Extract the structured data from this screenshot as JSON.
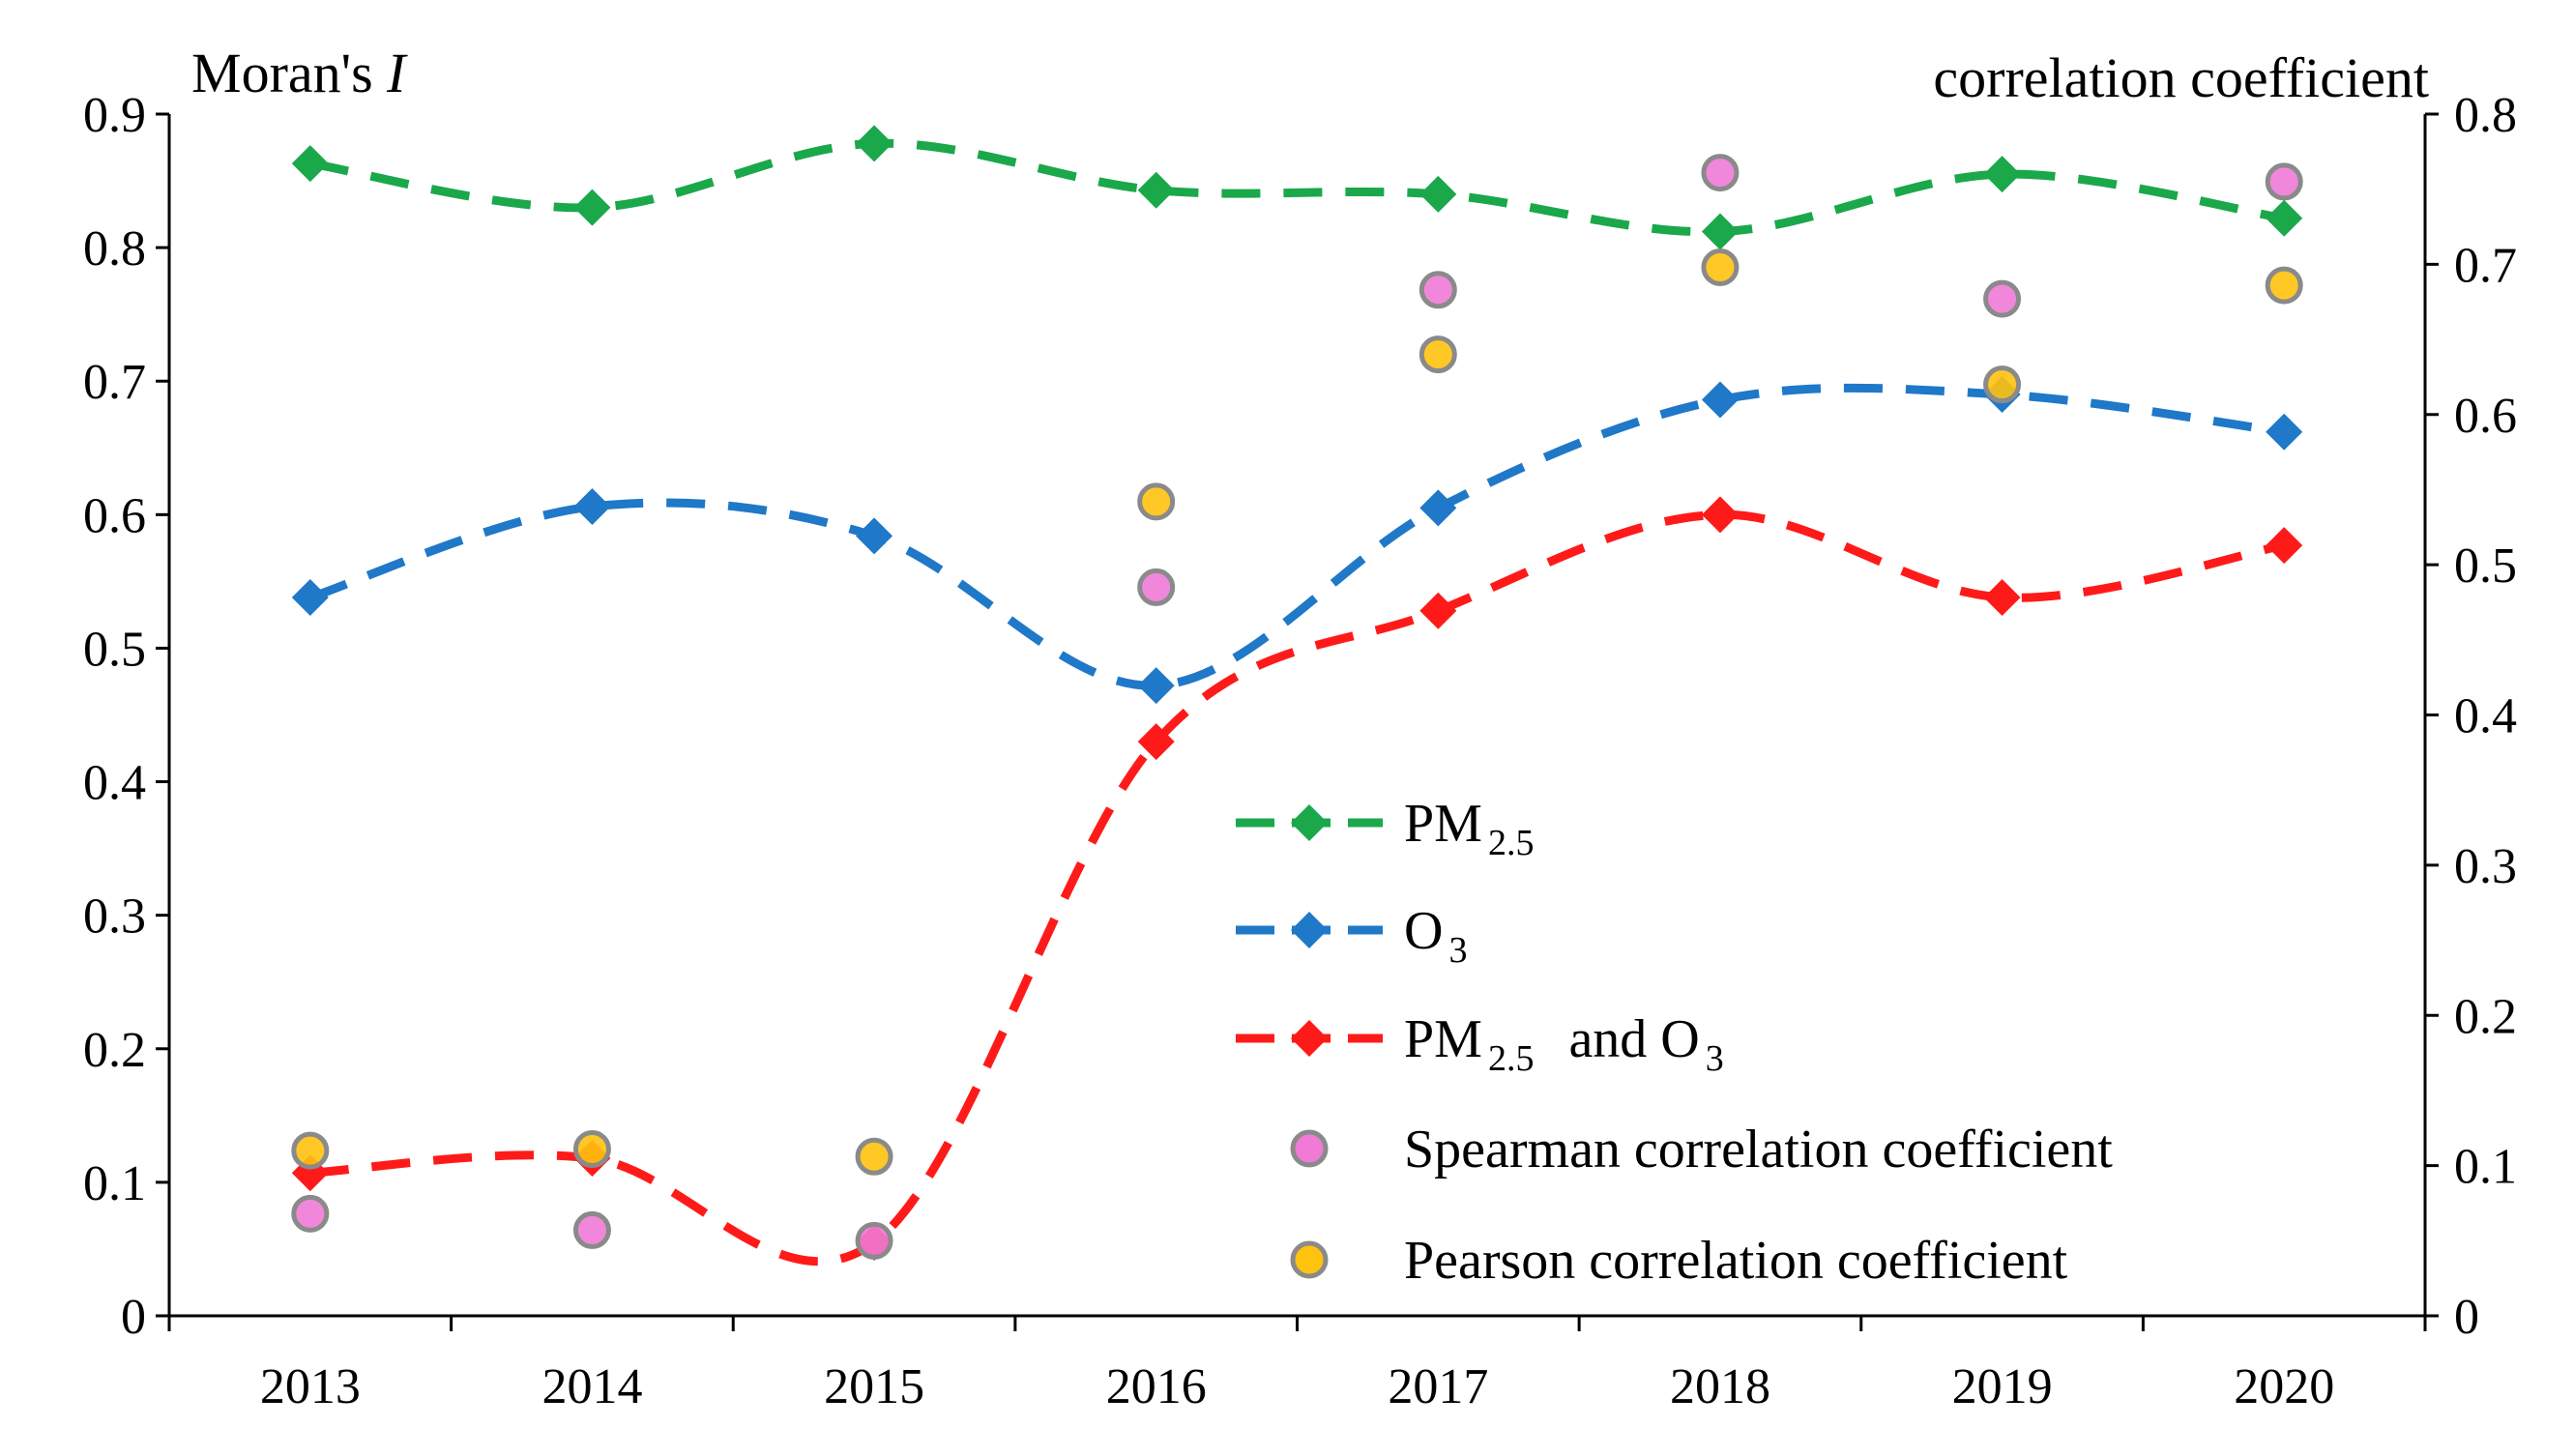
{
  "chart_data": {
    "type": "line",
    "x": [
      2013,
      2014,
      2015,
      2016,
      2017,
      2018,
      2019,
      2020
    ],
    "categories": [
      "2013",
      "2014",
      "2015",
      "2016",
      "2017",
      "2018",
      "2019",
      "2020"
    ],
    "left_axis": {
      "title_prefix": "Moran's ",
      "title_italic": "I",
      "ylim": [
        0,
        0.9
      ],
      "ticks": [
        "0",
        "0.1",
        "0.2",
        "0.3",
        "0.4",
        "0.5",
        "0.6",
        "0.7",
        "0.8",
        "0.9"
      ]
    },
    "right_axis": {
      "title": "correlation coefficient",
      "ylim": [
        0,
        0.8
      ],
      "ticks": [
        "0",
        "0.1",
        "0.2",
        "0.3",
        "0.4",
        "0.5",
        "0.6",
        "0.7",
        "0.8"
      ]
    },
    "series": [
      {
        "name": "PM2.5",
        "axis": "left",
        "style": "dashed-line-diamond",
        "color": "#1aa84a",
        "values": [
          0.863,
          0.83,
          0.878,
          0.843,
          0.84,
          0.812,
          0.855,
          0.822
        ]
      },
      {
        "name": "O3",
        "axis": "left",
        "style": "dashed-line-diamond",
        "color": "#1f78c8",
        "values": [
          0.538,
          0.606,
          0.584,
          0.472,
          0.605,
          0.686,
          0.69,
          0.662
        ]
      },
      {
        "name": "PM2.5 and O3",
        "axis": "left",
        "style": "dashed-line-diamond",
        "color": "#ff1a1a",
        "values": [
          0.107,
          0.118,
          0.055,
          0.43,
          0.528,
          0.6,
          0.538,
          0.577
        ]
      },
      {
        "name": "Spearman correlation coefficient",
        "axis": "right",
        "style": "circle",
        "color": "#f07ad6",
        "values": [
          0.068,
          0.057,
          0.05,
          0.485,
          0.683,
          0.761,
          0.677,
          0.755
        ]
      },
      {
        "name": "Pearson correlation coefficient",
        "axis": "right",
        "style": "circle",
        "color": "#ffc20e",
        "values": [
          0.11,
          0.111,
          0.106,
          0.542,
          0.64,
          0.698,
          0.62,
          0.686
        ]
      }
    ],
    "legend": {
      "placement": "center-right",
      "items": [
        {
          "main": "PM",
          "sub": "2.5",
          "rest": ""
        },
        {
          "main": "O",
          "sub": "3",
          "rest": ""
        },
        {
          "main": "PM",
          "sub": "2.5",
          "rest": "and O",
          "sub2": "3"
        },
        {
          "main": "Spearman correlation coefficient"
        },
        {
          "main": "Pearson correlation coefficient"
        }
      ]
    },
    "grid": false
  }
}
